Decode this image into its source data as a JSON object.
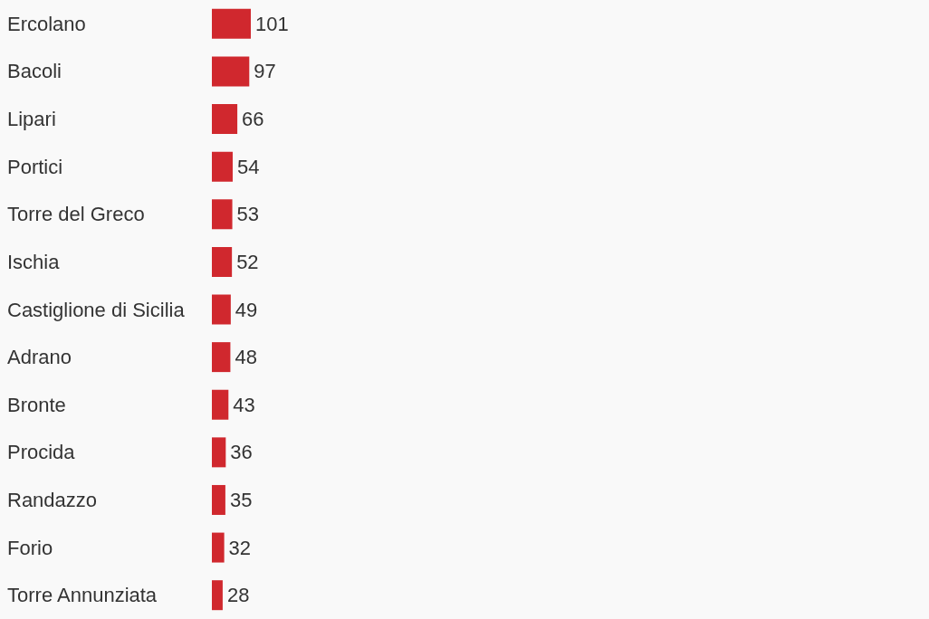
{
  "chart_data": {
    "type": "bar",
    "orientation": "horizontal",
    "categories": [
      "Ercolano",
      "Bacoli",
      "Lipari",
      "Portici",
      "Torre del Greco",
      "Ischia",
      "Castiglione di Sicilia",
      "Adrano",
      "Bronte",
      "Procida",
      "Randazzo",
      "Forio",
      "Torre Annunziata"
    ],
    "values": [
      101,
      97,
      66,
      54,
      53,
      52,
      49,
      48,
      43,
      36,
      35,
      32,
      28
    ],
    "color": "#d0282e",
    "data_labels": true
  }
}
